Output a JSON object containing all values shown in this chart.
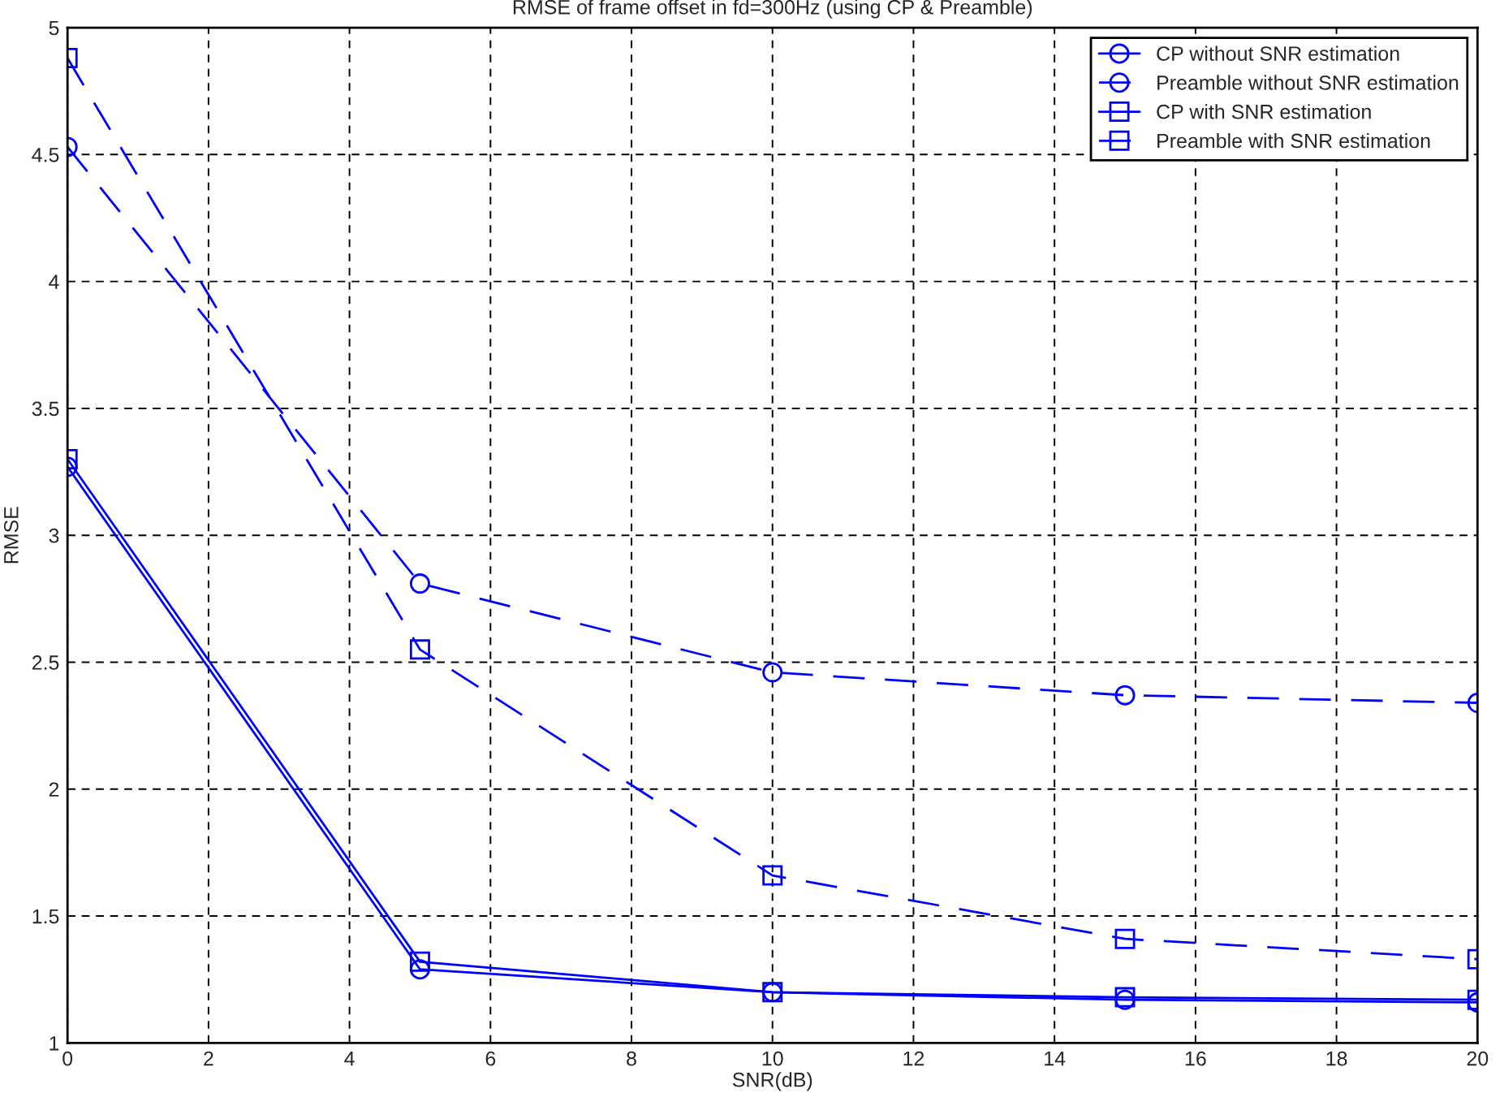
{
  "chart_data": {
    "type": "line",
    "title": "RMSE of frame offset in fd=300Hz (using CP & Preamble)",
    "xlabel": "SNR(dB)",
    "ylabel": "RMSE",
    "x": [
      0,
      5,
      10,
      15,
      20
    ],
    "series": [
      {
        "name": "CP without SNR estimation",
        "color": "#0000ff",
        "marker": "circle",
        "line_style": "solid",
        "values": [
          3.27,
          1.29,
          1.2,
          1.17,
          1.16
        ]
      },
      {
        "name": "Preamble without SNR estimation",
        "color": "#0000ff",
        "marker": "circle",
        "line_style": "dashed",
        "values": [
          4.53,
          2.81,
          2.46,
          2.37,
          2.34
        ]
      },
      {
        "name": "CP with SNR estimation",
        "color": "#0000ff",
        "marker": "square",
        "line_style": "solid",
        "values": [
          3.3,
          1.32,
          1.2,
          1.18,
          1.17
        ]
      },
      {
        "name": "Preamble with SNR estimation",
        "color": "#0000ff",
        "marker": "square",
        "line_style": "dashed",
        "values": [
          4.88,
          2.55,
          1.66,
          1.41,
          1.33
        ]
      }
    ],
    "xlim": [
      0,
      20
    ],
    "xticks": [
      0,
      2,
      4,
      6,
      8,
      10,
      12,
      14,
      16,
      18,
      20
    ],
    "ylim": [
      1,
      5
    ],
    "yticks": [
      1,
      1.5,
      2,
      2.5,
      3,
      3.5,
      4,
      4.5,
      5
    ],
    "grid": true,
    "legend": "top right"
  }
}
